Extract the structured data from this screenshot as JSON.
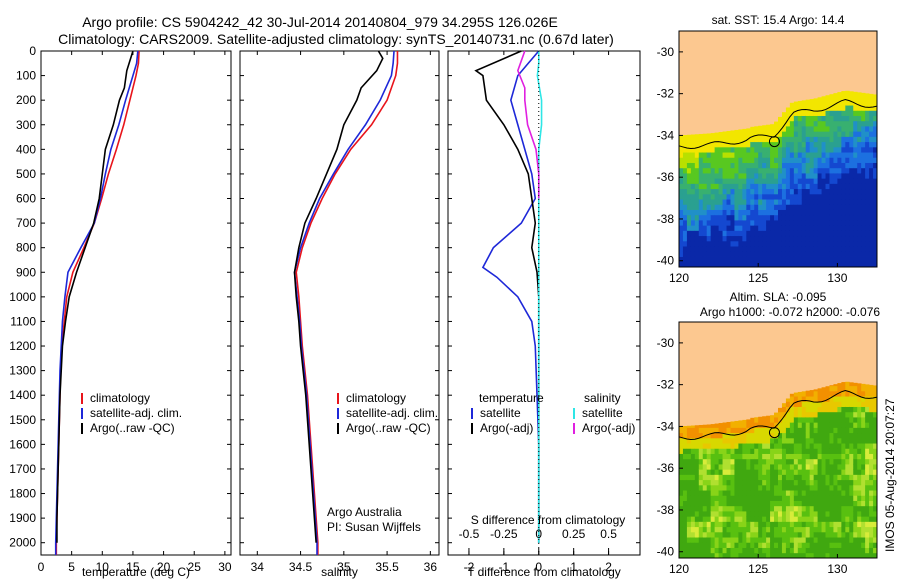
{
  "title_line1": "Argo profile: CS 5904242_42 30-Jul-2014 20140804_979 34.295S 126.026E",
  "title_line2": "Climatology: CARS2009. Satellite-adjusted climatology: synTS_20140731.nc (0.67d later)",
  "credit": "Argo Australia",
  "pi": "PI: Susan Wijffels",
  "timestamp": "IMOS 05-Aug-2014 20:07:27",
  "colors": {
    "climatology": "#e8141b",
    "satellite": "#1e28d8",
    "argo": "#000000",
    "sat_salinity": "#2ee6e6",
    "argo_salinity": "#e020e0",
    "land": "#fcc890"
  },
  "chart_data": [
    {
      "type": "line",
      "xlabel": "temperature (deg C)",
      "ylabel": "",
      "xlim": [
        0,
        31
      ],
      "ylim": [
        2050,
        0
      ],
      "x_ticks": [
        0,
        5,
        10,
        15,
        20,
        25,
        30
      ],
      "y_ticks": [
        0,
        100,
        200,
        300,
        400,
        500,
        600,
        700,
        800,
        900,
        1000,
        1100,
        1200,
        1300,
        1400,
        1500,
        1600,
        1700,
        1800,
        1900,
        2000
      ],
      "legend": {
        "position": "lower-center",
        "entries": [
          "climatology",
          "satellite-adj. clim.",
          "Argo(..raw -QC)"
        ]
      },
      "series": [
        {
          "name": "climatology",
          "color": "#e8141b",
          "points": [
            [
              16,
              0
            ],
            [
              15.9,
              50
            ],
            [
              15.5,
              100
            ],
            [
              14.5,
              200
            ],
            [
              13.5,
              300
            ],
            [
              12.3,
              400
            ],
            [
              11.0,
              500
            ],
            [
              9.9,
              600
            ],
            [
              8.7,
              700
            ],
            [
              7.0,
              800
            ],
            [
              5.2,
              900
            ],
            [
              4.2,
              1000
            ],
            [
              3.8,
              1100
            ],
            [
              3.4,
              1200
            ],
            [
              3.2,
              1300
            ],
            [
              3.1,
              1400
            ],
            [
              3.0,
              1500
            ],
            [
              2.9,
              1600
            ],
            [
              2.8,
              1700
            ],
            [
              2.7,
              1800
            ],
            [
              2.6,
              1900
            ],
            [
              2.5,
              2000
            ],
            [
              2.5,
              2050
            ]
          ]
        },
        {
          "name": "satellite-adj. clim.",
          "color": "#1e28d8",
          "points": [
            [
              15.8,
              0
            ],
            [
              15.6,
              50
            ],
            [
              15.0,
              100
            ],
            [
              13.8,
              200
            ],
            [
              12.7,
              300
            ],
            [
              11.4,
              400
            ],
            [
              10.5,
              500
            ],
            [
              9.7,
              600
            ],
            [
              8.7,
              700
            ],
            [
              6.5,
              800
            ],
            [
              4.4,
              900
            ],
            [
              3.9,
              1000
            ],
            [
              3.5,
              1100
            ],
            [
              3.3,
              1200
            ],
            [
              3.1,
              1300
            ],
            [
              3.0,
              1400
            ],
            [
              2.9,
              1500
            ],
            [
              2.8,
              1600
            ],
            [
              2.7,
              1700
            ],
            [
              2.6,
              1800
            ],
            [
              2.5,
              1900
            ],
            [
              2.4,
              2000
            ],
            [
              2.4,
              2050
            ]
          ]
        },
        {
          "name": "Argo(..raw -QC)",
          "color": "#000000",
          "points": [
            [
              15.0,
              0
            ],
            [
              14.0,
              80
            ],
            [
              13.6,
              150
            ],
            [
              12.8,
              200
            ],
            [
              11.8,
              300
            ],
            [
              10.5,
              400
            ],
            [
              10.0,
              500
            ],
            [
              9.5,
              600
            ],
            [
              8.6,
              700
            ],
            [
              7.2,
              800
            ],
            [
              5.8,
              900
            ],
            [
              4.6,
              1000
            ],
            [
              4.0,
              1100
            ],
            [
              3.5,
              1200
            ],
            [
              3.3,
              1300
            ],
            [
              3.1,
              1400
            ],
            [
              3.0,
              1500
            ],
            [
              2.9,
              1600
            ],
            [
              2.8,
              1700
            ],
            [
              2.7,
              1800
            ],
            [
              2.6,
              1900
            ],
            [
              2.6,
              2000
            ]
          ]
        }
      ]
    },
    {
      "type": "line",
      "xlabel": "salinity",
      "ylabel": "",
      "xlim": [
        33.8,
        36.1
      ],
      "ylim": [
        2050,
        0
      ],
      "x_ticks": [
        34,
        34.5,
        35,
        35.5,
        36
      ],
      "legend": {
        "position": "lower-center",
        "entries": [
          "climatology",
          "satellite-adj. clim.",
          "Argo(..raw -QC)"
        ]
      },
      "series": [
        {
          "name": "climatology",
          "color": "#e8141b",
          "points": [
            [
              35.62,
              0
            ],
            [
              35.62,
              50
            ],
            [
              35.6,
              100
            ],
            [
              35.5,
              200
            ],
            [
              35.32,
              300
            ],
            [
              35.08,
              400
            ],
            [
              34.9,
              500
            ],
            [
              34.75,
              600
            ],
            [
              34.62,
              700
            ],
            [
              34.52,
              800
            ],
            [
              34.45,
              900
            ],
            [
              34.48,
              1000
            ],
            [
              34.5,
              1100
            ],
            [
              34.52,
              1200
            ],
            [
              34.55,
              1300
            ],
            [
              34.58,
              1400
            ],
            [
              34.6,
              1500
            ],
            [
              34.62,
              1600
            ],
            [
              34.64,
              1700
            ],
            [
              34.66,
              1800
            ],
            [
              34.68,
              1900
            ],
            [
              34.7,
              2000
            ],
            [
              34.7,
              2050
            ]
          ]
        },
        {
          "name": "satellite-adj. clim.",
          "color": "#1e28d8",
          "points": [
            [
              35.58,
              0
            ],
            [
              35.57,
              50
            ],
            [
              35.55,
              100
            ],
            [
              35.42,
              200
            ],
            [
              35.25,
              300
            ],
            [
              35.05,
              400
            ],
            [
              34.88,
              500
            ],
            [
              34.72,
              600
            ],
            [
              34.6,
              700
            ],
            [
              34.5,
              800
            ],
            [
              34.43,
              900
            ],
            [
              34.46,
              1000
            ],
            [
              34.49,
              1100
            ],
            [
              34.51,
              1200
            ],
            [
              34.54,
              1300
            ],
            [
              34.57,
              1400
            ],
            [
              34.59,
              1500
            ],
            [
              34.61,
              1600
            ],
            [
              34.63,
              1700
            ],
            [
              34.65,
              1800
            ],
            [
              34.67,
              1900
            ],
            [
              34.69,
              2000
            ],
            [
              34.69,
              2050
            ]
          ]
        },
        {
          "name": "Argo(..raw -QC)",
          "color": "#000000",
          "points": [
            [
              35.4,
              0
            ],
            [
              35.45,
              30
            ],
            [
              35.38,
              80
            ],
            [
              35.2,
              150
            ],
            [
              35.15,
              200
            ],
            [
              35.0,
              300
            ],
            [
              34.92,
              400
            ],
            [
              34.8,
              500
            ],
            [
              34.68,
              600
            ],
            [
              34.55,
              700
            ],
            [
              34.48,
              800
            ],
            [
              34.43,
              900
            ],
            [
              34.45,
              1000
            ],
            [
              34.48,
              1100
            ],
            [
              34.5,
              1200
            ],
            [
              34.53,
              1300
            ],
            [
              34.56,
              1400
            ],
            [
              34.58,
              1500
            ],
            [
              34.6,
              1600
            ],
            [
              34.62,
              1700
            ],
            [
              34.64,
              1800
            ],
            [
              34.66,
              1900
            ],
            [
              34.68,
              2000
            ]
          ]
        }
      ]
    },
    {
      "type": "line",
      "xlabel": "T difference from climatology",
      "x2label": "S difference from climatology",
      "xlim": [
        -2.6,
        2.9
      ],
      "x2lim": [
        -0.65,
        0.725
      ],
      "ylim": [
        2050,
        0
      ],
      "x_ticks": [
        -2,
        -1,
        0,
        1,
        2
      ],
      "x2_ticks": [
        -0.5,
        -0.25,
        0,
        0.25,
        0.5
      ],
      "legend": {
        "position": "lower-center",
        "entries": [
          "temperature",
          "satellite",
          "Argo(-adj)",
          "salinity",
          "satellite",
          "Argo(-adj)"
        ]
      },
      "series": [
        {
          "name": "satellite",
          "color": "#1e28d8",
          "axis": "T",
          "points": [
            [
              0,
              0
            ],
            [
              -0.3,
              50
            ],
            [
              -0.6,
              100
            ],
            [
              -0.8,
              200
            ],
            [
              -0.6,
              300
            ],
            [
              -0.2,
              500
            ],
            [
              -0.1,
              600
            ],
            [
              -0.5,
              700
            ],
            [
              -1.3,
              800
            ],
            [
              -1.6,
              880
            ],
            [
              -1.2,
              920
            ],
            [
              -0.6,
              1000
            ],
            [
              -0.2,
              1100
            ],
            [
              -0.1,
              1200
            ],
            [
              -0.05,
              1400
            ],
            [
              0,
              1600
            ],
            [
              0,
              2000
            ]
          ]
        },
        {
          "name": "Argo(-adj)",
          "color": "#000000",
          "axis": "T",
          "points": [
            [
              -0.5,
              0
            ],
            [
              -1.8,
              80
            ],
            [
              -1.6,
              100
            ],
            [
              -1.5,
              200
            ],
            [
              -1.0,
              300
            ],
            [
              -0.6,
              400
            ],
            [
              -0.3,
              500
            ],
            [
              -0.2,
              600
            ],
            [
              -0.1,
              700
            ],
            [
              -0.2,
              800
            ],
            [
              -0.05,
              900
            ],
            [
              0,
              1000
            ],
            [
              0,
              2000
            ]
          ]
        },
        {
          "name": "satellite",
          "color": "#2ee6e6",
          "axis": "S",
          "points": [
            [
              0.0,
              0
            ],
            [
              0.0,
              50
            ],
            [
              -0.01,
              100
            ],
            [
              0.02,
              200
            ],
            [
              0.02,
              300
            ],
            [
              0.0,
              400
            ],
            [
              0.0,
              500
            ],
            [
              0.0,
              600
            ],
            [
              0.0,
              700
            ],
            [
              0.0,
              800
            ],
            [
              0.0,
              900
            ],
            [
              0.0,
              1000
            ],
            [
              0.0,
              2000
            ]
          ]
        },
        {
          "name": "Argo(-adj)",
          "color": "#e020e0",
          "axis": "S",
          "points": [
            [
              -0.1,
              0
            ],
            [
              -0.15,
              80
            ],
            [
              -0.1,
              150
            ],
            [
              -0.1,
              200
            ],
            [
              -0.08,
              300
            ],
            [
              -0.02,
              400
            ],
            [
              0.0,
              500
            ],
            [
              0.0,
              600
            ]
          ]
        }
      ]
    },
    {
      "type": "heatmap",
      "title": "sat. SST: 15.4 Argo: 14.4",
      "xlim": [
        120,
        132.5
      ],
      "ylim": [
        -40.3,
        -29
      ],
      "x_ticks": [
        120,
        125,
        130
      ],
      "y_ticks": [
        -30,
        -32,
        -34,
        -36,
        -38,
        -40
      ],
      "marker": {
        "lon": 126.026,
        "lat": -34.295
      }
    },
    {
      "type": "heatmap",
      "title": "Altim. SLA: -0.095",
      "subtitle": "Argo h1000: -0.072 h2000: -0.076",
      "xlim": [
        120,
        132.5
      ],
      "ylim": [
        -40.3,
        -29
      ],
      "x_ticks": [
        120,
        125,
        130
      ],
      "y_ticks": [
        -30,
        -32,
        -34,
        -36,
        -38,
        -40
      ],
      "marker": {
        "lon": 126.026,
        "lat": -34.295
      }
    }
  ]
}
